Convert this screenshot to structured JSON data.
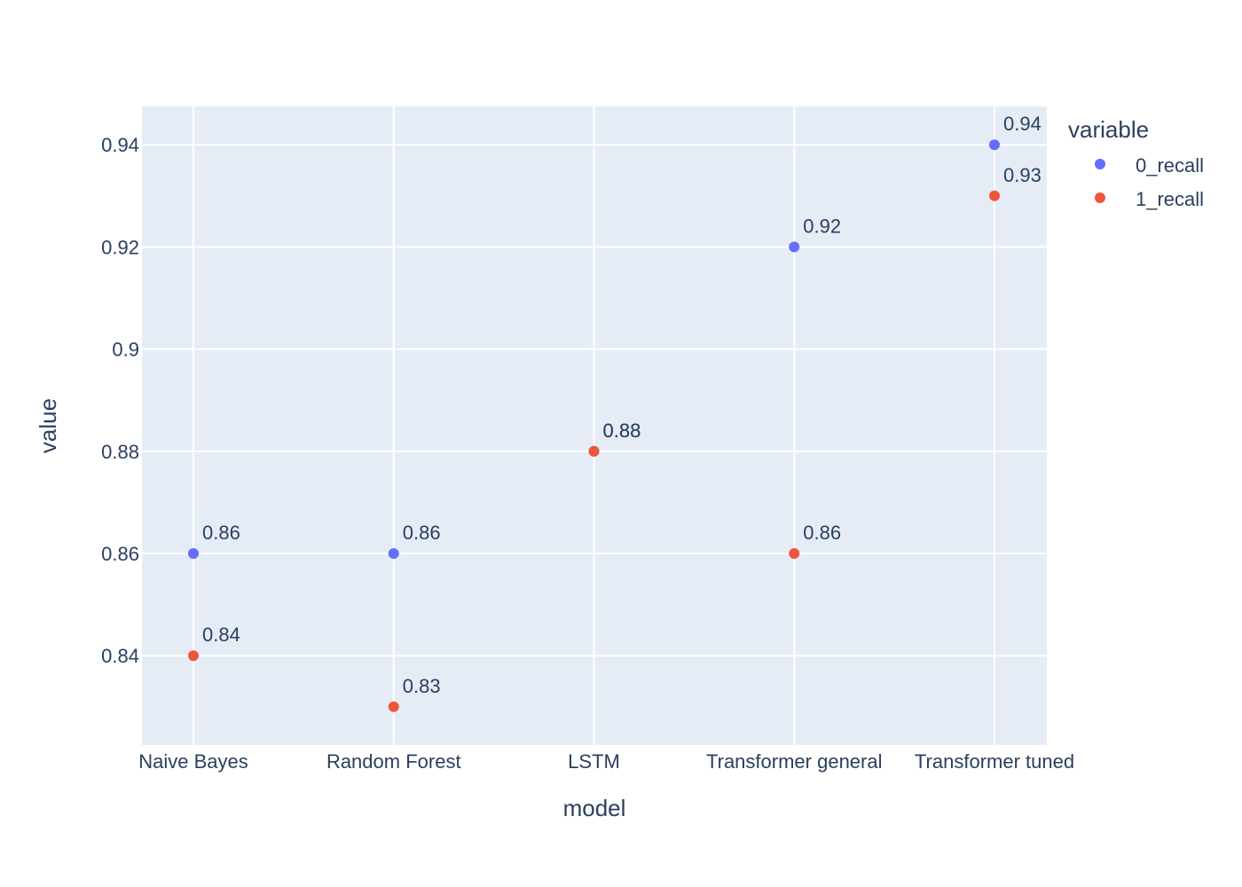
{
  "chart_data": {
    "type": "scatter",
    "categories": [
      "Naive Bayes",
      "Random Forest",
      "LSTM",
      "Transformer general",
      "Transformer tuned"
    ],
    "series": [
      {
        "name": "0_recall",
        "color": "#636efa",
        "values": [
          0.86,
          0.86,
          0.88,
          0.92,
          0.94
        ],
        "labels": [
          "0.86",
          "0.86",
          "0.88",
          "0.92",
          "0.94"
        ]
      },
      {
        "name": "1_recall",
        "color": "#ef553b",
        "values": [
          0.84,
          0.83,
          0.88,
          0.86,
          0.93
        ],
        "labels": [
          "0.84",
          "0.83",
          "0.88",
          "0.86",
          "0.93"
        ]
      }
    ],
    "xlabel": "model",
    "ylabel": "value",
    "ylim": [
      0.8225,
      0.9475
    ],
    "yticks": [
      0.84,
      0.86,
      0.88,
      0.9,
      0.92,
      0.94
    ],
    "ytick_labels": [
      "0.84",
      "0.86",
      "0.88",
      "0.9",
      "0.92",
      "0.94"
    ],
    "legend_title": "variable",
    "legend_position": "top-right",
    "grid": true,
    "plot_bg": "#e5ecf6",
    "grid_color": "#ffffff"
  }
}
